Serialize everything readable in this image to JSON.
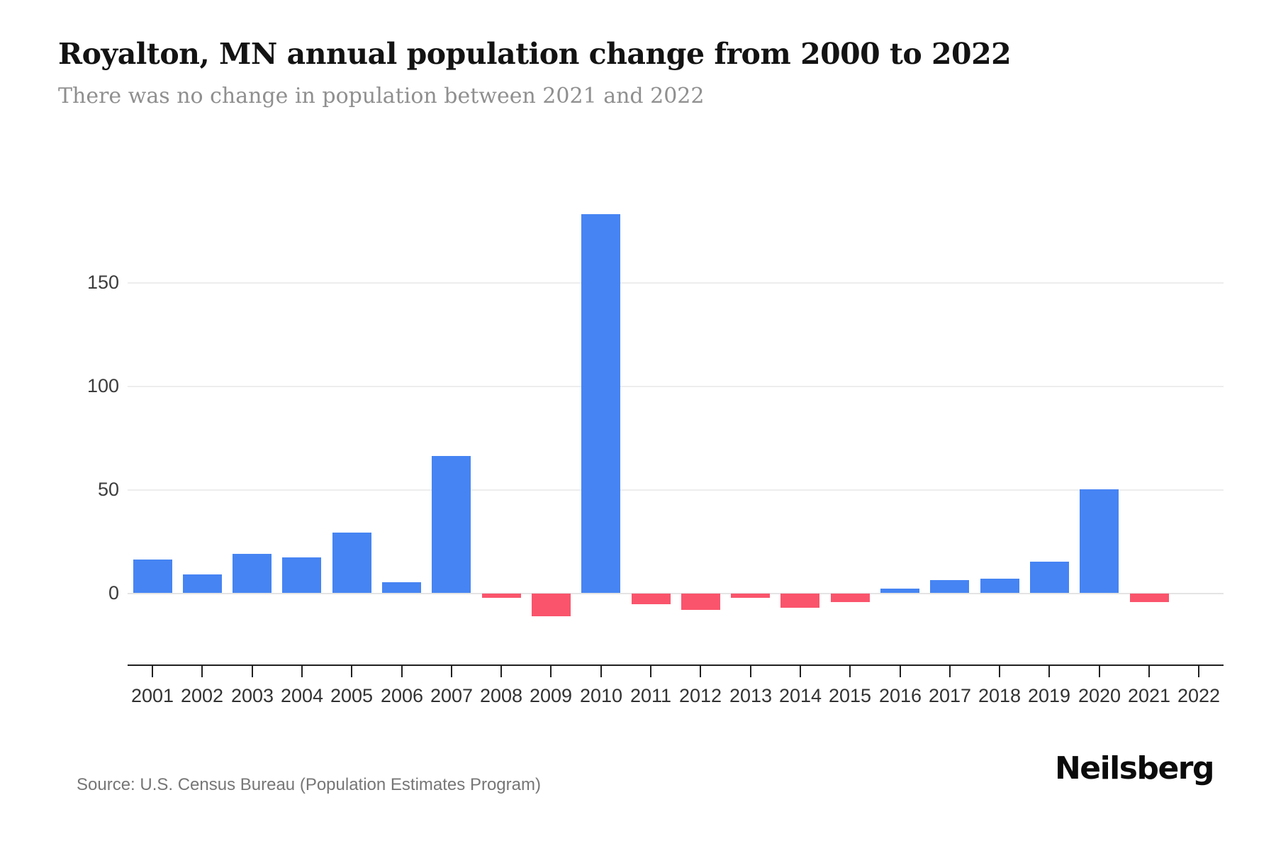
{
  "header": {
    "title": "Royalton, MN annual population change from 2000 to 2022",
    "subtitle": "There was no change in population between 2021 and 2022"
  },
  "footer": {
    "source": "Source: U.S. Census Bureau (Population Estimates Program)",
    "brand": "Neilsberg"
  },
  "chart_data": {
    "type": "bar",
    "title": "Royalton, MN annual population change from 2000 to 2022",
    "subtitle": "There was no change in population between 2021 and 2022",
    "categories": [
      "2001",
      "2002",
      "2003",
      "2004",
      "2005",
      "2006",
      "2007",
      "2008",
      "2009",
      "2010",
      "2011",
      "2012",
      "2013",
      "2014",
      "2015",
      "2016",
      "2017",
      "2018",
      "2019",
      "2020",
      "2021",
      "2022"
    ],
    "values": [
      16,
      9,
      19,
      17,
      29,
      5,
      66,
      -2,
      -11,
      183,
      -5,
      -8,
      -2,
      -7,
      -4,
      2,
      6,
      7,
      15,
      50,
      -4,
      0
    ],
    "xlabel": "",
    "ylabel": "",
    "yticks": [
      0,
      50,
      100,
      150
    ],
    "ylim": [
      -20,
      195
    ],
    "grid": true,
    "legend": false,
    "colors": {
      "positive": "#4684f3",
      "negative": "#fa546c"
    }
  }
}
